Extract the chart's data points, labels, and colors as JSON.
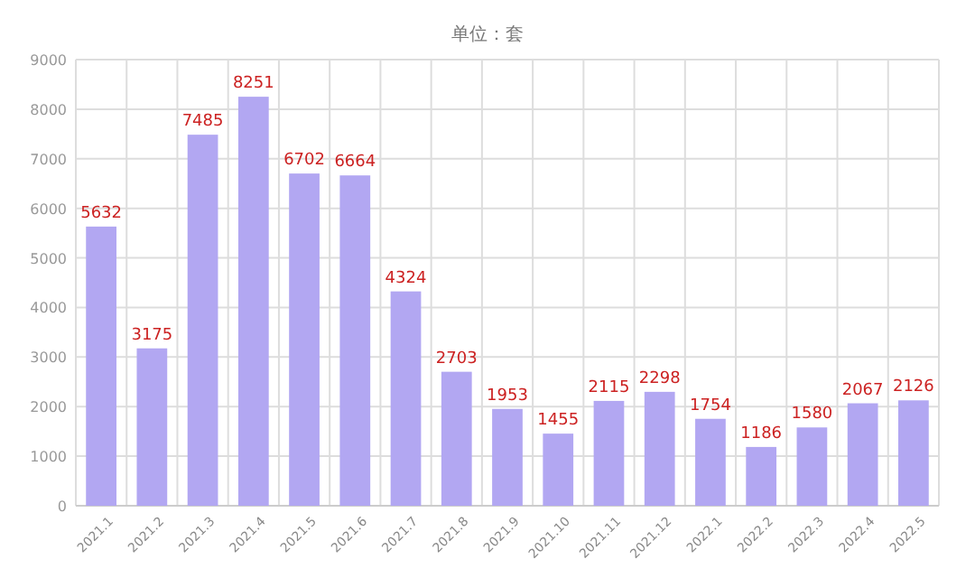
{
  "chart_data": {
    "type": "bar",
    "subtitle": "单位：套",
    "categories": [
      "2021.1",
      "2021.2",
      "2021.3",
      "2021.4",
      "2021.5",
      "2021.6",
      "2021.7",
      "2021.8",
      "2021.9",
      "2021.10",
      "2021.11",
      "2021.12",
      "2022.1",
      "2022.2",
      "2022.3",
      "2022.4",
      "2022.5"
    ],
    "values": [
      5632,
      3175,
      7485,
      8251,
      6702,
      6664,
      4324,
      2703,
      1953,
      1455,
      2115,
      2298,
      1754,
      1186,
      1580,
      2067,
      2126
    ],
    "color": "#b2a7f2",
    "data_labels": true,
    "ylim": [
      0,
      9000
    ],
    "yticks": [
      0,
      1000,
      2000,
      3000,
      4000,
      5000,
      6000,
      7000,
      8000,
      9000
    ],
    "grid": true
  }
}
